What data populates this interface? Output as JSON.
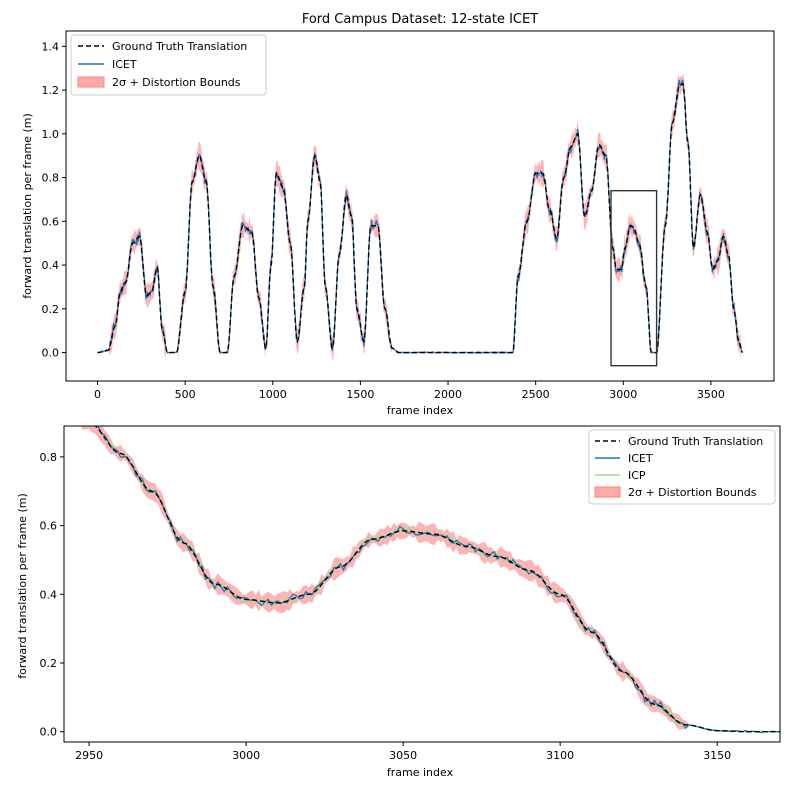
{
  "chart_data": [
    {
      "type": "line",
      "title": "Ford Campus Dataset: 12-state ICET",
      "xlabel": "frame index",
      "ylabel": "forward translation per frame (m)",
      "xlim": [
        -180,
        3860
      ],
      "ylim": [
        -0.13,
        1.47
      ],
      "xticks": [
        0,
        500,
        1000,
        1500,
        2000,
        2500,
        3000,
        3500
      ],
      "yticks": [
        0.0,
        0.2,
        0.4,
        0.6,
        0.8,
        1.0,
        1.2,
        1.4
      ],
      "xtick_labels": [
        "0",
        "500",
        "1000",
        "1500",
        "2000",
        "2500",
        "3000",
        "3500"
      ],
      "ytick_labels": [
        "0.0",
        "0.2",
        "0.4",
        "0.6",
        "0.8",
        "1.0",
        "1.2",
        "1.4"
      ],
      "legend_position": "upper-left",
      "legend": [
        "Ground Truth Translation",
        "ICET",
        "2σ + Distortion Bounds"
      ],
      "highlight_box": {
        "x": [
          2930,
          3190
        ],
        "y": [
          -0.06,
          0.74
        ]
      },
      "series": [
        {
          "name": "Ground Truth Translation",
          "style": "dashed",
          "color": "#000000",
          "x": [
            0,
            60,
            100,
            130,
            160,
            200,
            240,
            280,
            310,
            340,
            370,
            400,
            450,
            500,
            540,
            580,
            620,
            660,
            700,
            740,
            780,
            830,
            880,
            920,
            960,
            990,
            1020,
            1060,
            1100,
            1140,
            1180,
            1200,
            1240,
            1270,
            1300,
            1340,
            1380,
            1420,
            1450,
            1480,
            1520,
            1560,
            1600,
            1640,
            1680,
            1720,
            1800,
            2000,
            2200,
            2370,
            2400,
            2450,
            2500,
            2540,
            2580,
            2620,
            2660,
            2700,
            2740,
            2780,
            2820,
            2860,
            2900,
            2940,
            2960,
            2990,
            3010,
            3040,
            3060,
            3090,
            3130,
            3160,
            3190,
            3240,
            3280,
            3320,
            3340,
            3370,
            3400,
            3440,
            3480,
            3510,
            3540,
            3570,
            3600,
            3630,
            3660,
            3680
          ],
          "y": [
            0.0,
            0.01,
            0.12,
            0.28,
            0.32,
            0.5,
            0.53,
            0.26,
            0.28,
            0.39,
            0.1,
            0.0,
            0.0,
            0.28,
            0.78,
            0.9,
            0.78,
            0.3,
            0.0,
            0.0,
            0.35,
            0.58,
            0.55,
            0.25,
            0.02,
            0.4,
            0.82,
            0.75,
            0.5,
            0.05,
            0.3,
            0.6,
            0.9,
            0.78,
            0.3,
            0.02,
            0.45,
            0.72,
            0.62,
            0.2,
            0.05,
            0.58,
            0.58,
            0.2,
            0.02,
            0.0,
            0.0,
            0.0,
            0.0,
            0.0,
            0.35,
            0.6,
            0.82,
            0.82,
            0.65,
            0.52,
            0.8,
            0.94,
            1.0,
            0.62,
            0.74,
            0.95,
            0.9,
            0.48,
            0.38,
            0.38,
            0.48,
            0.58,
            0.57,
            0.5,
            0.3,
            0.0,
            0.0,
            0.58,
            1.05,
            1.22,
            1.23,
            0.95,
            0.48,
            0.72,
            0.55,
            0.38,
            0.42,
            0.53,
            0.45,
            0.2,
            0.05,
            0.0
          ]
        },
        {
          "name": "ICET",
          "style": "solid",
          "color": "#1f77b4"
        },
        {
          "name": "2σ + Distortion Bounds",
          "style": "band",
          "color": "#ff8080"
        }
      ]
    },
    {
      "type": "line",
      "title": "",
      "xlabel": "frame index",
      "ylabel": "forward translation per frame (m)",
      "xlim": [
        2942,
        3170
      ],
      "ylim": [
        -0.03,
        0.89
      ],
      "xticks": [
        2950,
        3000,
        3050,
        3100,
        3150
      ],
      "yticks": [
        0.0,
        0.2,
        0.4,
        0.6,
        0.8
      ],
      "xtick_labels": [
        "2950",
        "3000",
        "3050",
        "3100",
        "3150"
      ],
      "ytick_labels": [
        "0.0",
        "0.2",
        "0.4",
        "0.6",
        "0.8"
      ],
      "legend_position": "upper-right",
      "legend": [
        "Ground Truth Translation",
        "ICET",
        "ICP",
        "2σ + Distortion Bounds"
      ],
      "series": [
        {
          "name": "Ground Truth Translation",
          "style": "dashed",
          "color": "#000000",
          "x": [
            2942,
            2950,
            2960,
            2970,
            2980,
            2990,
            3000,
            3010,
            3020,
            3030,
            3040,
            3050,
            3060,
            3070,
            3080,
            3090,
            3100,
            3110,
            3120,
            3130,
            3140,
            3150,
            3160,
            3170
          ],
          "y": [
            0.93,
            0.9,
            0.81,
            0.7,
            0.55,
            0.43,
            0.385,
            0.375,
            0.4,
            0.48,
            0.56,
            0.585,
            0.575,
            0.54,
            0.51,
            0.47,
            0.4,
            0.29,
            0.175,
            0.08,
            0.02,
            0.003,
            0.0,
            0.0
          ]
        },
        {
          "name": "ICET",
          "style": "solid",
          "color": "#1f77b4"
        },
        {
          "name": "ICP",
          "style": "solid",
          "color": "#98df8a"
        },
        {
          "name": "2σ + Distortion Bounds",
          "style": "band",
          "color": "#ff8080"
        }
      ]
    }
  ]
}
